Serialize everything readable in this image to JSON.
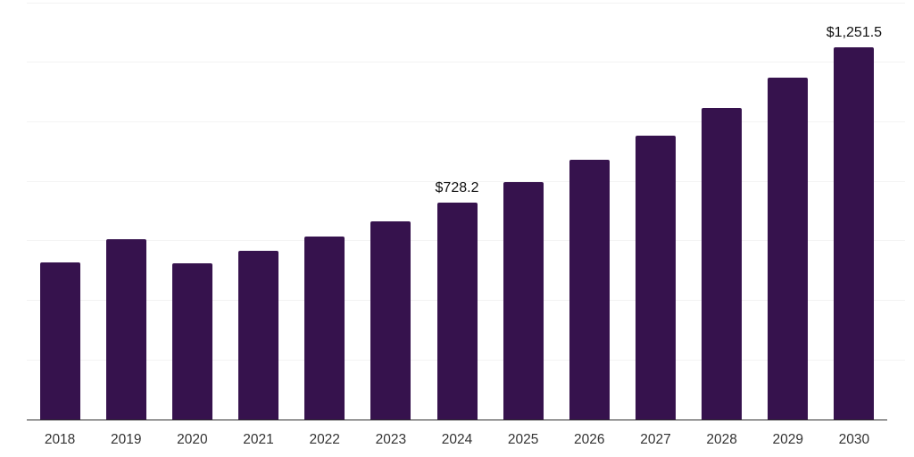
{
  "chart_data": {
    "type": "bar",
    "title": "",
    "xlabel": "",
    "ylabel": "",
    "categories": [
      "2018",
      "2019",
      "2020",
      "2021",
      "2022",
      "2023",
      "2024",
      "2025",
      "2026",
      "2027",
      "2028",
      "2029",
      "2030"
    ],
    "values": [
      529.0,
      605.0,
      524.0,
      568.0,
      615.0,
      667.0,
      728.2,
      798.0,
      873.0,
      954.0,
      1046.0,
      1148.0,
      1251.5
    ],
    "data_labels": [
      {
        "category": "2024",
        "text": "$728.2"
      },
      {
        "category": "2030",
        "text": "$1,251.5"
      }
    ],
    "ylim": [
      0,
      1400
    ],
    "gridline_step": 200,
    "grid": "horizontal-only",
    "legend": "none",
    "y_axis_tick_labels": "none",
    "bar_color": "#36124d",
    "gridline_color": "#f3f3f3",
    "axis_line_color": "#2d2d2d",
    "tick_label_color": "#333333",
    "value_label_color": "#111111",
    "background_color": "#ffffff"
  }
}
